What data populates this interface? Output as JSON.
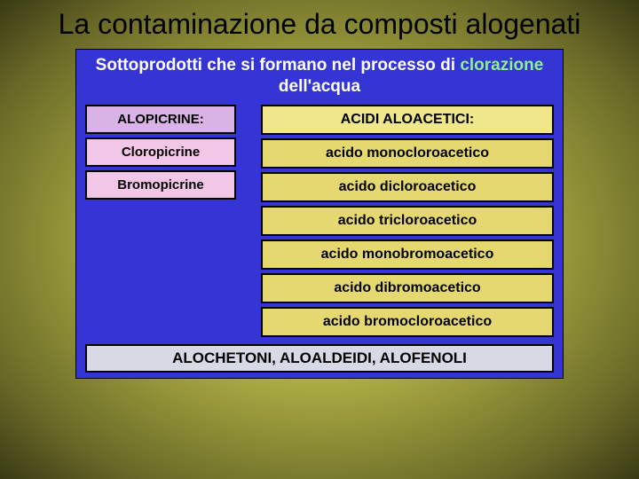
{
  "title": "La contaminazione da composti alogenati",
  "panel": {
    "background_color": "#3535d6",
    "header": {
      "prefix": "Sottoprodotti che si formano nel processo di ",
      "accent": "clorazione",
      "suffix": " dell'acqua",
      "text_color": "#ffffff",
      "accent_color": "#8ef08e",
      "font_family": "Comic Sans MS"
    },
    "left_column": {
      "header": {
        "text": "ALOPICRINE:",
        "bg": "#d9b3e6"
      },
      "rows": [
        {
          "text": "Cloropicrine",
          "bg": "#f2c6e6"
        },
        {
          "text": "Bromopicrine",
          "bg": "#f2c6e6"
        }
      ]
    },
    "right_column": {
      "header": {
        "text": "ACIDI ALOACETICI:",
        "bg": "#f0e68c"
      },
      "rows": [
        {
          "text": "acido monocloroacetico",
          "bg": "#e6d870"
        },
        {
          "text": "acido dicloroacetico",
          "bg": "#e6d870"
        },
        {
          "text": "acido tricloroacetico",
          "bg": "#e6d870"
        },
        {
          "text": "acido monobromoacetico",
          "bg": "#e6d870"
        },
        {
          "text": "acido dibromoacetico",
          "bg": "#e6d870"
        },
        {
          "text": "acido bromocloroacetico",
          "bg": "#e6d870"
        }
      ]
    },
    "footer": {
      "text": "ALOCHETONI, ALOALDEIDI, ALOFENOLI",
      "bg": "#d9d9e6"
    }
  }
}
